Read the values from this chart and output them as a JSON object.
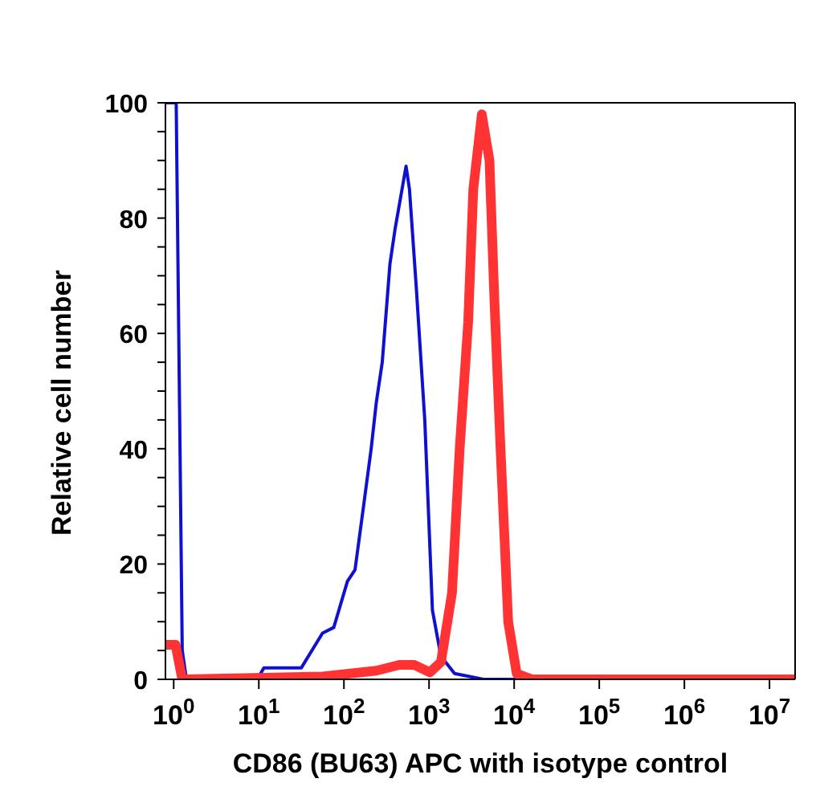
{
  "chart_data": {
    "type": "line",
    "xlabel": "CD86 (BU63) APC with isotype control",
    "ylabel": "Relative cell number",
    "log": "x",
    "xlim": [
      0.8,
      20000000
    ],
    "ylim": [
      0,
      100
    ],
    "xticks": [
      {
        "value": 1,
        "label": "10$^{0}$"
      },
      {
        "value": 10,
        "label": "10$^{1}$"
      },
      {
        "value": 100,
        "label": "10$^{2}$"
      },
      {
        "value": 1000,
        "label": "10$^{3}$"
      },
      {
        "value": 10000,
        "label": "10$^{4}$"
      },
      {
        "value": 100000,
        "label": "10$^{5}$"
      },
      {
        "value": 1000000,
        "label": "10$^{6}$"
      },
      {
        "value": 10000000,
        "label": "10$^{7}$"
      }
    ],
    "yticks": [
      0,
      {
        "value": 5,
        "label": null
      },
      {
        "value": 10,
        "label": null
      },
      {
        "value": 15,
        "label": null
      },
      20,
      {
        "value": 25,
        "label": null
      },
      {
        "value": 30,
        "label": null
      },
      {
        "value": 35,
        "label": null
      },
      40,
      {
        "value": 45,
        "label": null
      },
      {
        "value": 50,
        "label": null
      },
      {
        "value": 55,
        "label": null
      },
      60,
      {
        "value": 65,
        "label": null
      },
      {
        "value": 70,
        "label": null
      },
      {
        "value": 75,
        "label": null
      },
      80,
      {
        "value": 85,
        "label": null
      },
      {
        "value": 90,
        "label": null
      },
      {
        "value": 95,
        "label": null
      },
      100
    ],
    "marker": "none",
    "line_style": "solid",
    "series": [
      {
        "color": "#1010d0",
        "x": [
          0.8,
          1.07,
          1.26,
          1.41,
          4.9,
          10,
          11.5,
          31.6,
          56,
          76,
          110,
          135,
          170,
          209,
          240,
          282,
          347,
          398,
          537,
          589,
          708,
          891,
          1096,
          1380,
          1995,
          4365,
          20000000
        ],
        "values": [
          100,
          100,
          5,
          0,
          0,
          0.5,
          2,
          2,
          8,
          9,
          17,
          19,
          30,
          40,
          48,
          55,
          72,
          78,
          89,
          85,
          68,
          45,
          12,
          4,
          1,
          0,
          0
        ]
      },
      {
        "color": "#ff3333",
        "x": [
          0.8,
          1.05,
          1.26,
          56,
          240,
          447,
          676,
          1023,
          1380,
          1862,
          2291,
          2884,
          3311,
          4169,
          5129,
          5888,
          6918,
          8511,
          10715,
          16218,
          20000000
        ],
        "values": [
          6,
          6,
          0,
          0.5,
          1.5,
          2.5,
          2.5,
          1.2,
          3,
          15,
          40,
          62,
          85,
          98,
          90,
          65,
          40,
          10,
          1,
          0,
          0
        ]
      }
    ]
  }
}
